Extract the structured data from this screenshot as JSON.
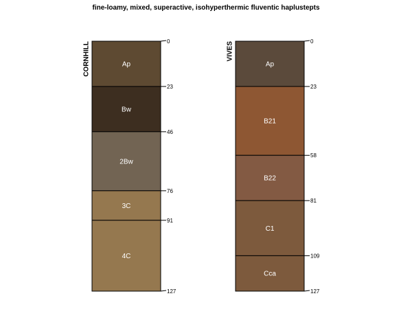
{
  "title": "fine-loamy, mixed, superactive, isohyperthermic fluventic haplustepts",
  "profiles": [
    {
      "name": "CORNHILL",
      "horizons": [
        {
          "name": "Ap",
          "top": 0,
          "bottom": 23,
          "color": "#5E4A32"
        },
        {
          "name": "Bw",
          "top": 23,
          "bottom": 46,
          "color": "#3D2E20"
        },
        {
          "name": "2Bw",
          "top": 46,
          "bottom": 76,
          "color": "#726453"
        },
        {
          "name": "3C",
          "top": 76,
          "bottom": 91,
          "color": "#95784F"
        },
        {
          "name": "4C",
          "top": 91,
          "bottom": 127,
          "color": "#95784F"
        }
      ]
    },
    {
      "name": "VIVES",
      "horizons": [
        {
          "name": "Ap",
          "top": 0,
          "bottom": 23,
          "color": "#5B4A3B"
        },
        {
          "name": "B21",
          "top": 23,
          "bottom": 58,
          "color": "#8E5733"
        },
        {
          "name": "B22",
          "top": 58,
          "bottom": 81,
          "color": "#835A43"
        },
        {
          "name": "C1",
          "top": 81,
          "bottom": 109,
          "color": "#7D5A3D"
        },
        {
          "name": "Cca",
          "top": 109,
          "bottom": 127,
          "color": "#7D5A3D"
        }
      ]
    }
  ]
}
